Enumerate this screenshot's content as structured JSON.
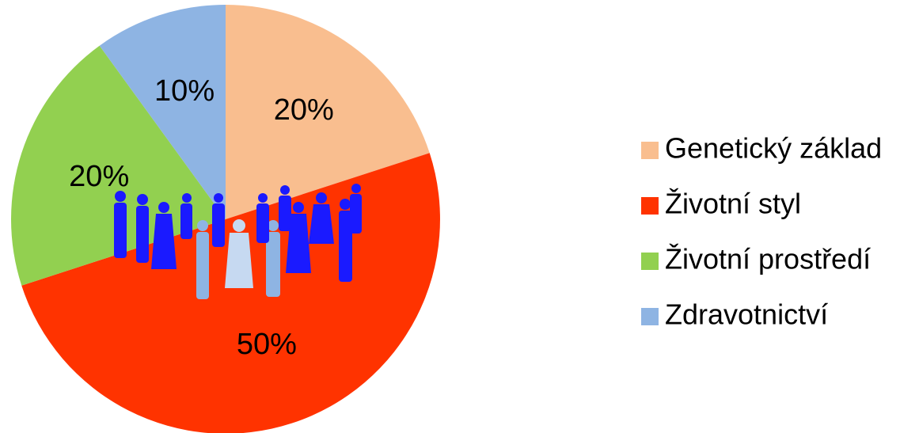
{
  "chart_data": {
    "type": "pie",
    "categories": [
      "Genetický základ",
      "Životní styl",
      "Životní prostředí",
      "Zdravotnictví"
    ],
    "values": [
      20,
      50,
      20,
      10
    ],
    "value_labels": [
      "20%",
      "50%",
      "20%",
      "10%"
    ],
    "colors": [
      "#f9be8f",
      "#ff3300",
      "#92d050",
      "#8eb4e3"
    ],
    "legend": "right"
  }
}
